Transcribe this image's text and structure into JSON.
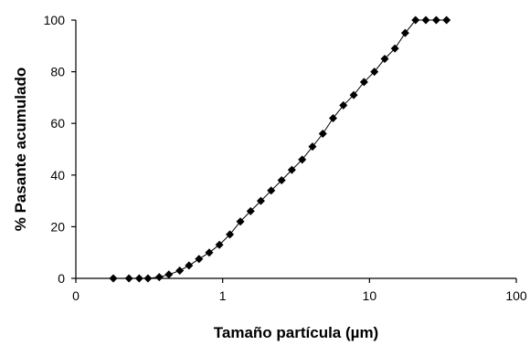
{
  "chart_data": {
    "type": "scatter",
    "xscale": "log",
    "xlabel": "Tamaño partícula (µm)",
    "ylabel": "% Pasante acumulado",
    "xlim": [
      0.1,
      100
    ],
    "ylim": [
      0,
      100
    ],
    "xticks": [
      "0",
      "1",
      "10",
      "100"
    ],
    "yticks": [
      "0",
      "20",
      "40",
      "60",
      "80",
      "100"
    ],
    "grid": false,
    "legend": "none",
    "marker": "diamond",
    "color": "#000000",
    "series": [
      {
        "x": [
          0.18,
          0.23,
          0.27,
          0.31,
          0.37,
          0.43,
          0.51,
          0.59,
          0.69,
          0.81,
          0.95,
          1.12,
          1.32,
          1.55,
          1.82,
          2.14,
          2.52,
          2.96,
          3.48,
          4.09,
          4.81,
          5.65,
          6.64,
          7.81,
          9.18,
          10.8,
          12.7,
          14.9,
          17.5,
          20.6,
          24.2,
          28.5,
          33.5
        ],
        "y": [
          0,
          0,
          0,
          0,
          0.5,
          1.5,
          3,
          5,
          7.5,
          10,
          13,
          17,
          22,
          26,
          30,
          34,
          38,
          42,
          46,
          51,
          56,
          62,
          67,
          71,
          76,
          80,
          85,
          89,
          95,
          100,
          100,
          100,
          100
        ]
      }
    ]
  }
}
